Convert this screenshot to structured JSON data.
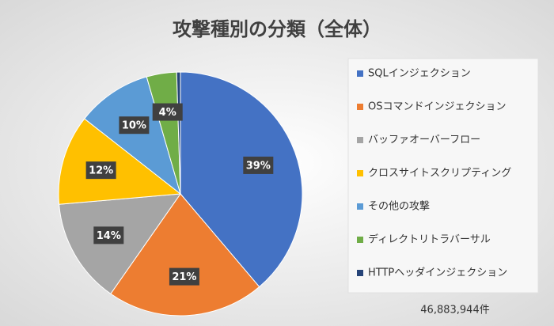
{
  "chart_data": {
    "type": "pie",
    "title": "攻撃種別の分類（全体）",
    "categories": [
      "SQLインジェクション",
      "OSコマンドインジェクション",
      "バッファオーバーフロー",
      "クロスサイトスクリプティング",
      "その他の攻撃",
      "ディレクトリトラバーサル",
      "HTTPヘッダインジェクション"
    ],
    "values": [
      39,
      21,
      14,
      12,
      10,
      4,
      0.5
    ],
    "value_labels": [
      "39%",
      "21%",
      "14%",
      "12%",
      "10%",
      "4%",
      null
    ],
    "colors": [
      "#4472c4",
      "#ed7d31",
      "#a5a5a5",
      "#ffc000",
      "#5b9bd5",
      "#70ad47",
      "#264478"
    ],
    "legend": "right",
    "annotation": "46,883,944件"
  }
}
